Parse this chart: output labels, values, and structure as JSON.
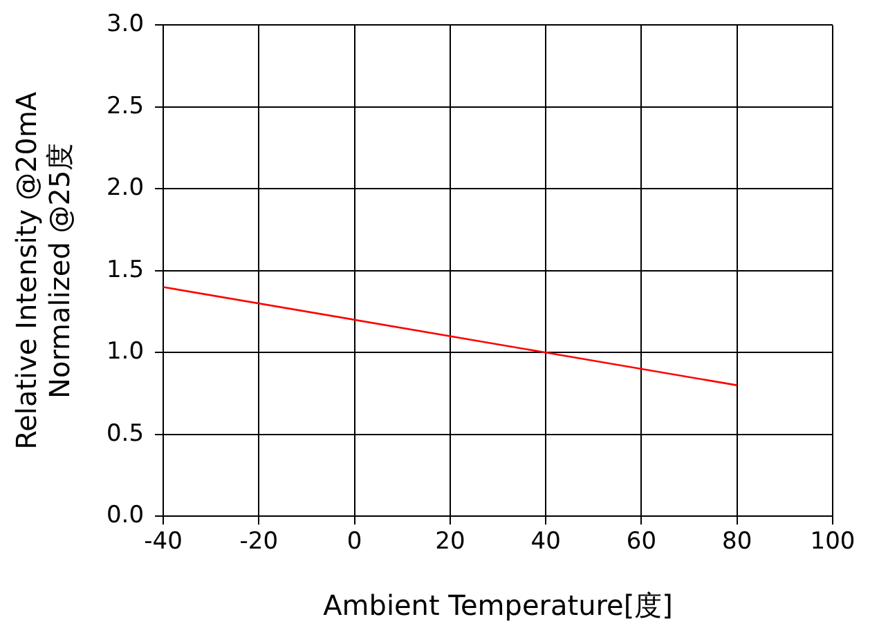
{
  "chart_data": {
    "type": "line",
    "xlabel": "Ambient Temperature[度]",
    "ylabel": "Relative Intensity @20mA\nNormalized @25度",
    "x": [
      -40,
      40,
      80
    ],
    "series": [
      {
        "color": "#ff0000",
        "values": [
          1.4,
          1.0,
          0.8
        ]
      }
    ],
    "xlim": [
      -40,
      100
    ],
    "xticks": [
      -40,
      -20,
      0,
      20,
      40,
      60,
      80,
      100
    ],
    "ylim": [
      0,
      3
    ],
    "yticks": [
      {
        "value": 0,
        "label": "0.0"
      },
      0.5,
      {
        "value": 1,
        "label": "1.0"
      },
      1.5,
      {
        "value": 2,
        "label": "2.0"
      },
      2.5,
      {
        "value": 3,
        "label": "3.0"
      }
    ],
    "grid": true,
    "marker": "none",
    "line_style": "solid"
  }
}
